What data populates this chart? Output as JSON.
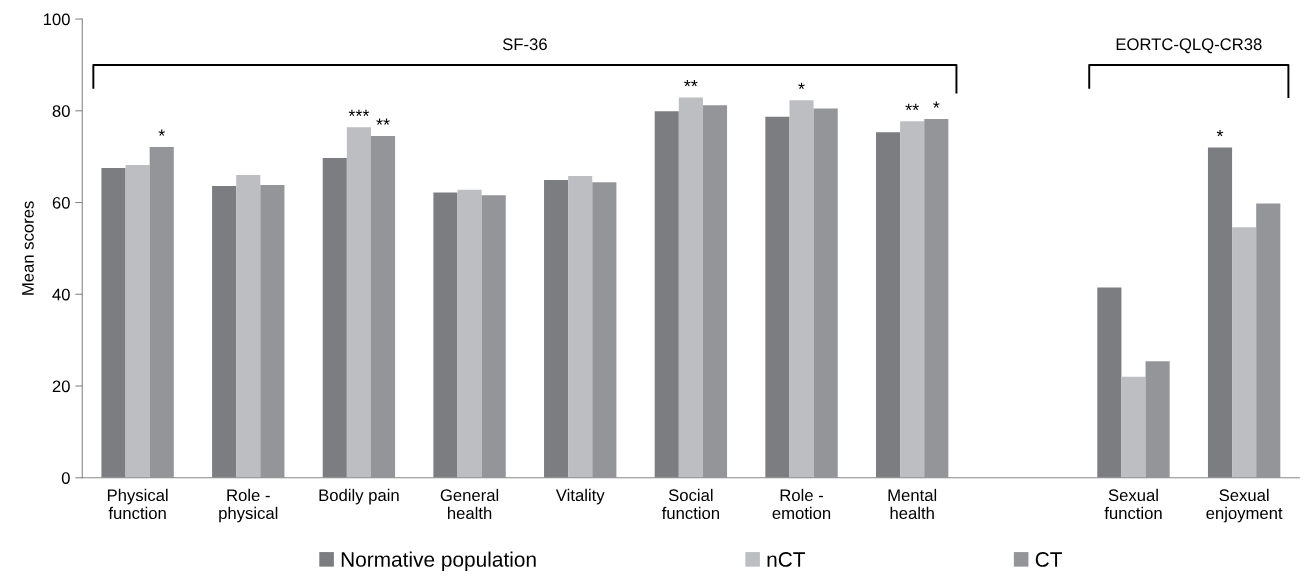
{
  "chart_data": {
    "type": "bar",
    "ylabel": "Mean scores",
    "categories": [
      "Physical\nfunction",
      "Role -\nphysical",
      "Bodily pain",
      "General\nhealth",
      "Vitality",
      "Social\nfunction",
      "Role -\nemotion",
      "Mental\nhealth",
      null,
      "Sexual\nfunction",
      "Sexual\nenjoyment"
    ],
    "series": [
      {
        "name": "Normative population",
        "color": "#7c7d81",
        "values": [
          67.5,
          63.6,
          69.7,
          62.2,
          64.9,
          79.9,
          78.7,
          75.3,
          null,
          41.5,
          72.0
        ],
        "value_labels": [
          null,
          null,
          null,
          null,
          null,
          null,
          null,
          null,
          null,
          null,
          "*"
        ]
      },
      {
        "name": "nCT",
        "color": "#bdbec2",
        "values": [
          68.2,
          66.0,
          76.4,
          62.8,
          65.8,
          82.9,
          82.3,
          77.7,
          null,
          22.0,
          54.6
        ],
        "value_labels": [
          null,
          null,
          "***",
          null,
          null,
          "**",
          "*",
          "**",
          null,
          null,
          null
        ]
      },
      {
        "name": "CT",
        "color": "#949599",
        "values": [
          72.1,
          63.8,
          74.5,
          61.6,
          64.4,
          81.2,
          80.5,
          78.2,
          null,
          25.4,
          59.8
        ],
        "value_labels": [
          "*",
          null,
          "**",
          null,
          null,
          null,
          null,
          "*",
          null,
          null,
          null
        ]
      }
    ],
    "ylim": [
      0,
      100
    ],
    "yticks": [
      0,
      20,
      40,
      60,
      80,
      100
    ],
    "grid": false,
    "legend": "bottom",
    "annotations": [
      "SF-36",
      "EORTC-QLQ-CR38"
    ]
  }
}
